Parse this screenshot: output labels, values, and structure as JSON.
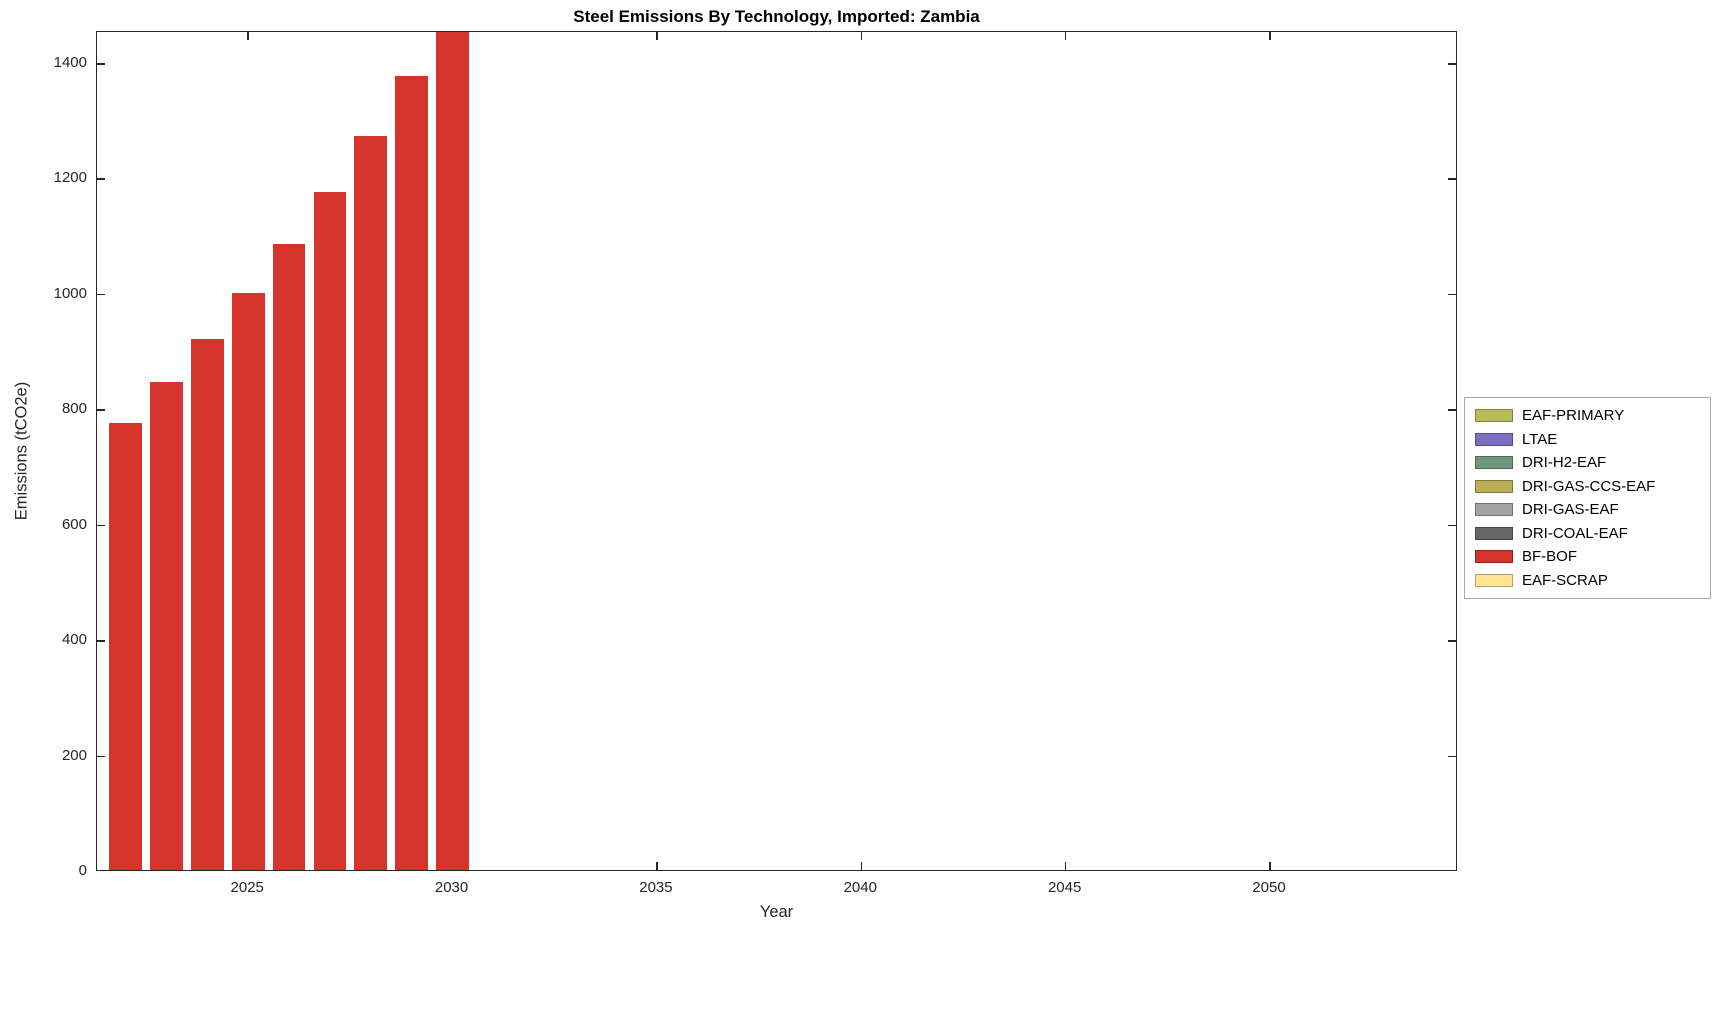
{
  "chart_data": {
    "type": "bar",
    "title": "Steel Emissions By Technology, Imported: Zambia",
    "xlabel": "Year",
    "ylabel": "Emissions (tCO2e)",
    "x": [
      2022,
      2023,
      2024,
      2025,
      2026,
      2027,
      2028,
      2029,
      2030
    ],
    "series": [
      {
        "name": "BF-BOF",
        "color": "#d5342c",
        "values": [
          775,
          845,
          920,
          1000,
          1085,
          1175,
          1272,
          1375,
          1490
        ]
      }
    ],
    "xlim": [
      2021.3,
      2054.6
    ],
    "ylim": [
      0,
      1455
    ],
    "xticks": [
      2025,
      2030,
      2035,
      2040,
      2045,
      2050
    ],
    "yticks": [
      0,
      200,
      400,
      600,
      800,
      1000,
      1200,
      1400
    ],
    "grid": false,
    "bar_width_years": 0.8,
    "legend": {
      "position": "outside-right",
      "entries": [
        {
          "label": "EAF-PRIMARY",
          "color": "#b9bd59"
        },
        {
          "label": "LTAE",
          "color": "#7b6fc4"
        },
        {
          "label": "DRI-H2-EAF",
          "color": "#6f957c"
        },
        {
          "label": "DRI-GAS-CCS-EAF",
          "color": "#b9ae55"
        },
        {
          "label": "DRI-GAS-EAF",
          "color": "#a3a3a3"
        },
        {
          "label": "DRI-COAL-EAF",
          "color": "#666666"
        },
        {
          "label": "BF-BOF",
          "color": "#d5342c"
        },
        {
          "label": "EAF-SCRAP",
          "color": "#ffe593"
        }
      ]
    }
  }
}
